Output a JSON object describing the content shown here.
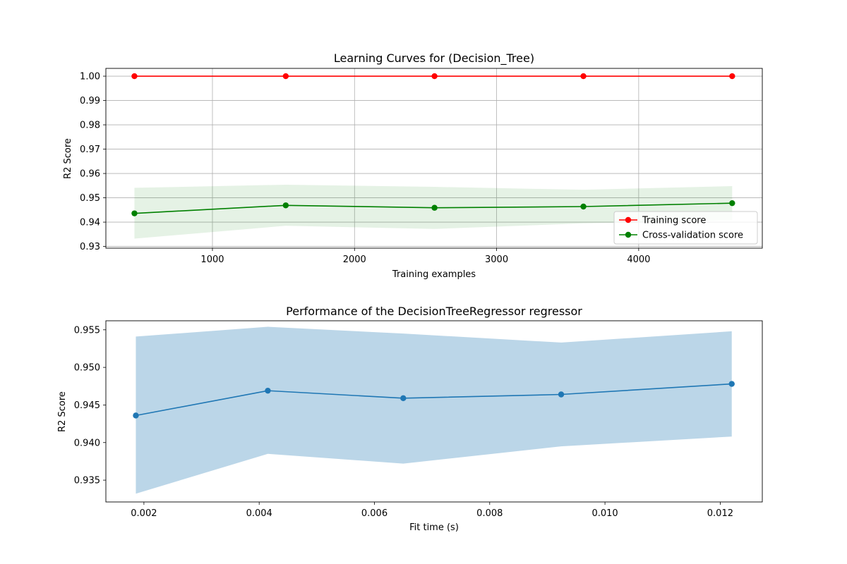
{
  "chart_data": [
    {
      "type": "line",
      "title": "Learning Curves for (Decision_Tree)",
      "xlabel": "Training examples",
      "ylabel": "R2 Score",
      "xlim": [
        250,
        4870
      ],
      "ylim": [
        0.9293,
        1.0032
      ],
      "xticks": [
        1000,
        2000,
        3000,
        4000
      ],
      "xtick_labels": [
        "1000",
        "2000",
        "3000",
        "4000"
      ],
      "yticks": [
        0.93,
        0.94,
        0.95,
        0.96,
        0.97,
        0.98,
        0.99,
        1.0
      ],
      "ytick_labels": [
        "0.93",
        "0.94",
        "0.95",
        "0.96",
        "0.97",
        "0.98",
        "0.99",
        "1.00"
      ],
      "grid": true,
      "legend_position": "lower-right",
      "x": [
        451,
        1516,
        2563,
        3611,
        4658
      ],
      "series": [
        {
          "name": "Training score",
          "color": "#ff0000",
          "marker": "circle",
          "values": [
            1.0,
            1.0,
            1.0,
            1.0,
            1.0
          ],
          "band_lower": [
            1.0,
            1.0,
            1.0,
            1.0,
            1.0
          ],
          "band_upper": [
            1.0,
            1.0,
            1.0,
            1.0,
            1.0
          ]
        },
        {
          "name": "Cross-validation score",
          "color": "#008000",
          "marker": "circle",
          "values": [
            0.9436,
            0.9469,
            0.9459,
            0.9464,
            0.9478
          ],
          "band_lower": [
            0.9332,
            0.9385,
            0.9372,
            0.9395,
            0.9408
          ],
          "band_upper": [
            0.9541,
            0.9554,
            0.9545,
            0.9533,
            0.9548
          ],
          "band_color": "#008000",
          "band_opacity": 0.1
        }
      ]
    },
    {
      "type": "line",
      "title": "Performance of the DecisionTreeRegressor regressor",
      "xlabel": "Fit time (s)",
      "ylabel": "R2 Score",
      "xlim": [
        0.00134,
        0.01273
      ],
      "ylim": [
        0.9321,
        0.9562
      ],
      "xticks": [
        0.002,
        0.004,
        0.006,
        0.008,
        0.01,
        0.012
      ],
      "xtick_labels": [
        "0.002",
        "0.004",
        "0.006",
        "0.008",
        "0.010",
        "0.012"
      ],
      "yticks": [
        0.935,
        0.94,
        0.945,
        0.95,
        0.955
      ],
      "ytick_labels": [
        "0.935",
        "0.940",
        "0.945",
        "0.950",
        "0.955"
      ],
      "grid": false,
      "x": [
        0.00186,
        0.00415,
        0.0065,
        0.00924,
        0.0122
      ],
      "series": [
        {
          "color": "#1f77b4",
          "marker": "circle",
          "values": [
            0.9436,
            0.9469,
            0.9459,
            0.9464,
            0.9478
          ],
          "band_lower": [
            0.9332,
            0.9385,
            0.9372,
            0.9395,
            0.9408
          ],
          "band_upper": [
            0.9541,
            0.9554,
            0.9545,
            0.9533,
            0.9548
          ],
          "band_color": "#1f77b4",
          "band_opacity": 0.3
        }
      ]
    }
  ]
}
